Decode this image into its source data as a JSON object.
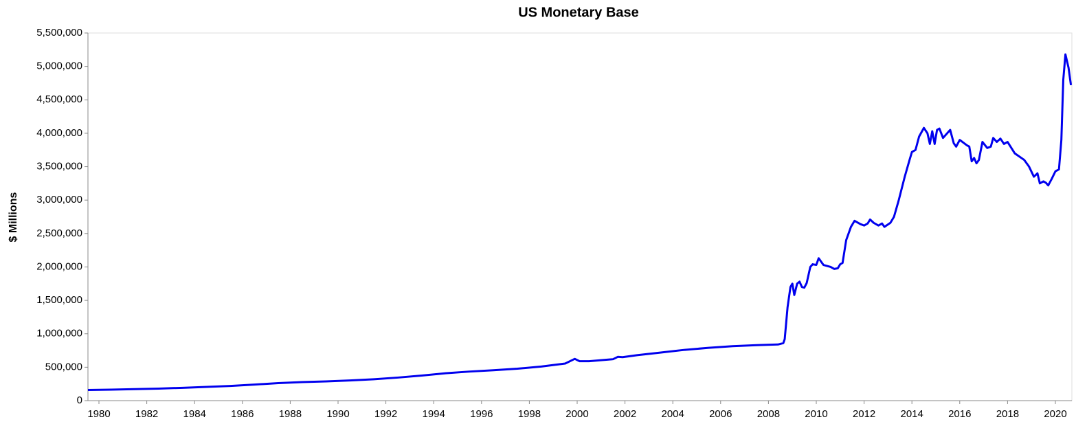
{
  "chart_data": {
    "type": "line",
    "title": "US Monetary Base",
    "y_label": "$ Millions",
    "color": "#0000ee",
    "xlim": [
      1979.54,
      2020.69
    ],
    "xticks": [
      1980,
      1982,
      1984,
      1986,
      1988,
      1990,
      1992,
      1994,
      1996,
      1998,
      2000,
      2002,
      2004,
      2006,
      2008,
      2010,
      2012,
      2014,
      2016,
      2018,
      2020
    ],
    "ylim": [
      0,
      5500000
    ],
    "yticks": [
      0,
      {
        "value": 500000,
        "label": "500,000"
      },
      {
        "value": 1000000,
        "label": "1,000,000"
      },
      {
        "value": 1500000,
        "label": "1,500,000"
      },
      {
        "value": 2000000,
        "label": "2,000,000"
      },
      {
        "value": 2500000,
        "label": "2,500,000"
      },
      {
        "value": 3000000,
        "label": "3,000,000"
      },
      {
        "value": 3500000,
        "label": "3,500,000"
      },
      {
        "value": 4000000,
        "label": "4,000,000"
      },
      {
        "value": 4500000,
        "label": "4,500,000"
      },
      {
        "value": 5000000,
        "label": "5,000,000"
      },
      {
        "value": 5500000,
        "label": "5,500,000"
      }
    ],
    "grid": false,
    "x": [
      1979.54,
      1980.5,
      1981.5,
      1982.5,
      1983.5,
      1984.5,
      1985.5,
      1986.5,
      1987.5,
      1988.5,
      1989.5,
      1990.5,
      1991.5,
      1992.5,
      1993.5,
      1994.5,
      1995.5,
      1996.5,
      1997.5,
      1998.5,
      1999.5,
      1999.9,
      2000.1,
      2000.5,
      2001.0,
      2001.5,
      2001.7,
      2001.9,
      2002.5,
      2003.5,
      2004.5,
      2005.5,
      2006.5,
      2007.5,
      2008.4,
      2008.62,
      2008.68,
      2008.8,
      2008.92,
      2009.0,
      2009.08,
      2009.2,
      2009.3,
      2009.4,
      2009.5,
      2009.6,
      2009.75,
      2009.85,
      2010.0,
      2010.1,
      2010.2,
      2010.3,
      2010.6,
      2010.75,
      2010.9,
      2011.0,
      2011.1,
      2011.25,
      2011.45,
      2011.6,
      2011.85,
      2012.0,
      2012.15,
      2012.25,
      2012.4,
      2012.6,
      2012.75,
      2012.85,
      2013.1,
      2013.25,
      2013.45,
      2013.7,
      2013.9,
      2014.0,
      2014.15,
      2014.3,
      2014.5,
      2014.65,
      2014.75,
      2014.85,
      2014.95,
      2015.05,
      2015.15,
      2015.3,
      2015.6,
      2015.75,
      2015.85,
      2016.0,
      2016.3,
      2016.4,
      2016.5,
      2016.6,
      2016.7,
      2016.8,
      2016.95,
      2017.15,
      2017.3,
      2017.4,
      2017.55,
      2017.7,
      2017.85,
      2018.0,
      2018.3,
      2018.7,
      2018.9,
      2019.1,
      2019.25,
      2019.35,
      2019.5,
      2019.6,
      2019.7,
      2019.85,
      2020.0,
      2020.15,
      2020.25,
      2020.33,
      2020.42,
      2020.55,
      2020.65
    ],
    "values": [
      160000,
      165000,
      172000,
      180000,
      192000,
      205000,
      220000,
      240000,
      262000,
      278000,
      288000,
      302000,
      320000,
      345000,
      375000,
      410000,
      435000,
      455000,
      478000,
      510000,
      555000,
      625000,
      590000,
      590000,
      605000,
      620000,
      655000,
      650000,
      680000,
      720000,
      760000,
      790000,
      815000,
      830000,
      840000,
      860000,
      920000,
      1400000,
      1700000,
      1750000,
      1580000,
      1750000,
      1780000,
      1700000,
      1690000,
      1760000,
      2000000,
      2040000,
      2030000,
      2130000,
      2080000,
      2030000,
      2000000,
      1970000,
      1980000,
      2040000,
      2060000,
      2400000,
      2600000,
      2690000,
      2640000,
      2620000,
      2650000,
      2710000,
      2660000,
      2620000,
      2650000,
      2600000,
      2660000,
      2750000,
      3000000,
      3350000,
      3600000,
      3720000,
      3750000,
      3950000,
      4080000,
      4000000,
      3840000,
      4030000,
      3840000,
      4050000,
      4070000,
      3930000,
      4050000,
      3850000,
      3800000,
      3900000,
      3820000,
      3800000,
      3580000,
      3630000,
      3550000,
      3600000,
      3870000,
      3780000,
      3800000,
      3930000,
      3870000,
      3920000,
      3840000,
      3870000,
      3700000,
      3600000,
      3500000,
      3350000,
      3400000,
      3250000,
      3280000,
      3260000,
      3220000,
      3320000,
      3430000,
      3460000,
      3900000,
      4800000,
      5180000,
      4980000,
      4720000
    ]
  }
}
